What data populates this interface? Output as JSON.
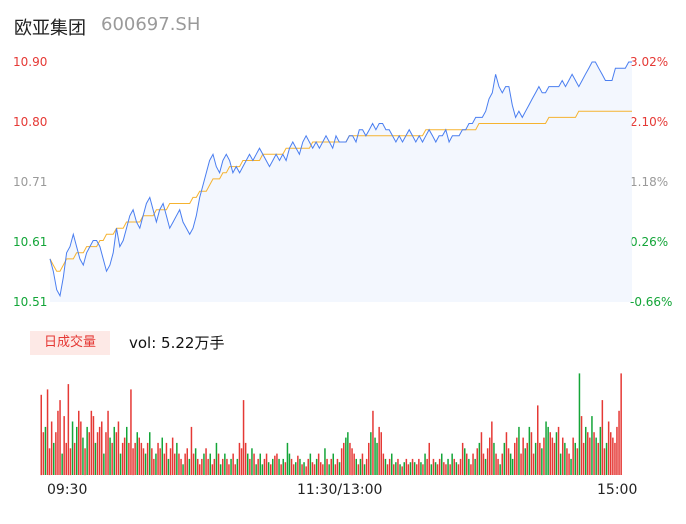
{
  "header": {
    "name": "欧亚集团",
    "code": "600697.SH"
  },
  "price_axis": {
    "left_labels": [
      "10.90",
      "10.80",
      "10.71",
      "10.61",
      "10.51"
    ],
    "right_labels": [
      "3.02%",
      "2.10%",
      "1.18%",
      "0.26%",
      "-0.66%"
    ]
  },
  "volume": {
    "tab_label": "日成交量",
    "summary": "vol: 5.22万手"
  },
  "time_axis": {
    "labels": [
      "09:30",
      "11:30/13:00",
      "15:00"
    ]
  },
  "colors": {
    "up": "#e53935",
    "down": "#13a538",
    "neutral": "#9a9a9a",
    "price_line": "#4a7ef0",
    "avg_line": "#f5b330"
  },
  "chart_data": {
    "type": "line",
    "ylim": [
      10.51,
      10.9
    ],
    "price_series": [
      10.58,
      10.56,
      10.53,
      10.52,
      10.55,
      10.59,
      10.6,
      10.62,
      10.6,
      10.58,
      10.57,
      10.59,
      10.6,
      10.61,
      10.61,
      10.6,
      10.58,
      10.56,
      10.57,
      10.59,
      10.63,
      10.6,
      10.61,
      10.63,
      10.65,
      10.66,
      10.64,
      10.63,
      10.65,
      10.67,
      10.68,
      10.66,
      10.64,
      10.66,
      10.67,
      10.65,
      10.63,
      10.64,
      10.65,
      10.66,
      10.64,
      10.63,
      10.62,
      10.63,
      10.65,
      10.68,
      10.7,
      10.72,
      10.74,
      10.75,
      10.73,
      10.72,
      10.74,
      10.75,
      10.74,
      10.72,
      10.73,
      10.72,
      10.73,
      10.74,
      10.75,
      10.74,
      10.75,
      10.76,
      10.75,
      10.74,
      10.73,
      10.74,
      10.75,
      10.74,
      10.75,
      10.74,
      10.76,
      10.77,
      10.76,
      10.75,
      10.77,
      10.78,
      10.77,
      10.76,
      10.77,
      10.76,
      10.77,
      10.78,
      10.77,
      10.76,
      10.78,
      10.77,
      10.77,
      10.77,
      10.78,
      10.78,
      10.77,
      10.79,
      10.79,
      10.78,
      10.79,
      10.8,
      10.79,
      10.8,
      10.8,
      10.79,
      10.79,
      10.78,
      10.77,
      10.78,
      10.77,
      10.78,
      10.79,
      10.78,
      10.77,
      10.78,
      10.77,
      10.78,
      10.79,
      10.78,
      10.77,
      10.78,
      10.78,
      10.79,
      10.77,
      10.78,
      10.78,
      10.78,
      10.79,
      10.79,
      10.8,
      10.8,
      10.81,
      10.81,
      10.81,
      10.82,
      10.84,
      10.85,
      10.88,
      10.86,
      10.85,
      10.86,
      10.86,
      10.83,
      10.81,
      10.82,
      10.81,
      10.82,
      10.83,
      10.84,
      10.85,
      10.86,
      10.85,
      10.85,
      10.86,
      10.86,
      10.86,
      10.86,
      10.87,
      10.86,
      10.87,
      10.88,
      10.87,
      10.86,
      10.87,
      10.88,
      10.89,
      10.9,
      10.9,
      10.89,
      10.88,
      10.87,
      10.87,
      10.87,
      10.89,
      10.89,
      10.89,
      10.89,
      10.9,
      10.9
    ],
    "avg_series": [
      10.58,
      10.57,
      10.56,
      10.56,
      10.57,
      10.58,
      10.58,
      10.58,
      10.59,
      10.59,
      10.59,
      10.6,
      10.6,
      10.6,
      10.6,
      10.61,
      10.61,
      10.62,
      10.62,
      10.62,
      10.63,
      10.63,
      10.63,
      10.64,
      10.64,
      10.64,
      10.64,
      10.64,
      10.65,
      10.65,
      10.65,
      10.65,
      10.66,
      10.66,
      10.66,
      10.66,
      10.67,
      10.67,
      10.67,
      10.67,
      10.67,
      10.67,
      10.67,
      10.68,
      10.68,
      10.69,
      10.69,
      10.69,
      10.7,
      10.71,
      10.71,
      10.71,
      10.72,
      10.72,
      10.73,
      10.73,
      10.73,
      10.73,
      10.74,
      10.74,
      10.74,
      10.74,
      10.74,
      10.74,
      10.75,
      10.75,
      10.75,
      10.75,
      10.75,
      10.75,
      10.75,
      10.76,
      10.76,
      10.76,
      10.76,
      10.76,
      10.76,
      10.76,
      10.76,
      10.77,
      10.77,
      10.77,
      10.77,
      10.77,
      10.77,
      10.77,
      10.77,
      10.77,
      10.77,
      10.77,
      10.78,
      10.78,
      10.78,
      10.78,
      10.78,
      10.78,
      10.78,
      10.78,
      10.78,
      10.78,
      10.78,
      10.78,
      10.78,
      10.78,
      10.78,
      10.78,
      10.78,
      10.78,
      10.78,
      10.78,
      10.78,
      10.78,
      10.78,
      10.79,
      10.79,
      10.79,
      10.79,
      10.79,
      10.79,
      10.79,
      10.79,
      10.79,
      10.79,
      10.79,
      10.79,
      10.79,
      10.79,
      10.79,
      10.79,
      10.8,
      10.8,
      10.8,
      10.8,
      10.8,
      10.8,
      10.8,
      10.8,
      10.8,
      10.8,
      10.8,
      10.8,
      10.8,
      10.8,
      10.8,
      10.8,
      10.8,
      10.8,
      10.8,
      10.8,
      10.8,
      10.81,
      10.81,
      10.81,
      10.81,
      10.81,
      10.81,
      10.81,
      10.81,
      10.81,
      10.82,
      10.82,
      10.82,
      10.82,
      10.82,
      10.82,
      10.82,
      10.82,
      10.82,
      10.82,
      10.82,
      10.82,
      10.82,
      10.82,
      10.82,
      10.82,
      10.82
    ],
    "volume_series": [
      0.75,
      0.4,
      0.45,
      0.8,
      0.25,
      0.5,
      0.3,
      0.4,
      0.6,
      0.7,
      0.2,
      0.55,
      0.3,
      0.85,
      0.25,
      0.5,
      0.3,
      0.45,
      0.6,
      0.5,
      0.35,
      0.25,
      0.45,
      0.4,
      0.6,
      0.55,
      0.3,
      0.4,
      0.45,
      0.5,
      0.2,
      0.4,
      0.6,
      0.35,
      0.3,
      0.45,
      0.4,
      0.5,
      0.2,
      0.3,
      0.35,
      0.45,
      0.3,
      0.8,
      0.25,
      0.3,
      0.4,
      0.35,
      0.3,
      0.25,
      0.2,
      0.3,
      0.4,
      0.25,
      0.15,
      0.2,
      0.3,
      0.25,
      0.35,
      0.2,
      0.3,
      0.15,
      0.25,
      0.35,
      0.2,
      0.3,
      0.2,
      0.15,
      0.1,
      0.2,
      0.25,
      0.15,
      0.45,
      0.2,
      0.25,
      0.15,
      0.1,
      0.15,
      0.2,
      0.25,
      0.15,
      0.2,
      0.1,
      0.15,
      0.3,
      0.2,
      0.1,
      0.15,
      0.2,
      0.15,
      0.1,
      0.15,
      0.2,
      0.1,
      0.15,
      0.3,
      0.25,
      0.7,
      0.3,
      0.2,
      0.15,
      0.25,
      0.2,
      0.1,
      0.15,
      0.2,
      0.1,
      0.15,
      0.2,
      0.12,
      0.1,
      0.15,
      0.18,
      0.2,
      0.15,
      0.1,
      0.15,
      0.12,
      0.3,
      0.2,
      0.15,
      0.1,
      0.12,
      0.18,
      0.15,
      0.1,
      0.12,
      0.08,
      0.15,
      0.2,
      0.12,
      0.1,
      0.15,
      0.2,
      0.12,
      0.1,
      0.25,
      0.15,
      0.1,
      0.15,
      0.2,
      0.1,
      0.15,
      0.12,
      0.25,
      0.3,
      0.35,
      0.4,
      0.3,
      0.25,
      0.2,
      0.15,
      0.1,
      0.15,
      0.2,
      0.1,
      0.15,
      0.3,
      0.4,
      0.6,
      0.35,
      0.3,
      0.45,
      0.4,
      0.2,
      0.15,
      0.1,
      0.15,
      0.2,
      0.1,
      0.12,
      0.15,
      0.1,
      0.08,
      0.12,
      0.15,
      0.1,
      0.12,
      0.15,
      0.12,
      0.1,
      0.15,
      0.12,
      0.1,
      0.2,
      0.15,
      0.3,
      0.1,
      0.15,
      0.12,
      0.1,
      0.15,
      0.2,
      0.12,
      0.1,
      0.15,
      0.1,
      0.2,
      0.15,
      0.12,
      0.1,
      0.15,
      0.3,
      0.25,
      0.2,
      0.15,
      0.1,
      0.2,
      0.15,
      0.25,
      0.3,
      0.4,
      0.2,
      0.15,
      0.25,
      0.35,
      0.5,
      0.3,
      0.2,
      0.15,
      0.1,
      0.2,
      0.3,
      0.4,
      0.25,
      0.2,
      0.15,
      0.3,
      0.35,
      0.45,
      0.2,
      0.35,
      0.25,
      0.3,
      0.45,
      0.4,
      0.2,
      0.3,
      0.65,
      0.3,
      0.25,
      0.35,
      0.5,
      0.45,
      0.4,
      0.35,
      0.3,
      0.4,
      0.45,
      0.2,
      0.35,
      0.3,
      0.25,
      0.2,
      0.15,
      0.35,
      0.3,
      0.25,
      0.95,
      0.55,
      0.3,
      0.45,
      0.4,
      0.35,
      0.55,
      0.4,
      0.35,
      0.3,
      0.45,
      0.7,
      0.25,
      0.3,
      0.5,
      0.4,
      0.35,
      0.3,
      0.45,
      0.6,
      0.95
    ],
    "volume_colors": [
      "up",
      "up",
      "down",
      "up",
      "up",
      "up",
      "down",
      "up",
      "up",
      "up",
      "down",
      "up",
      "up",
      "up",
      "up",
      "down",
      "up",
      "down",
      "up",
      "up",
      "down",
      "up",
      "down",
      "up",
      "up",
      "up",
      "down",
      "up",
      "up",
      "up",
      "down",
      "up",
      "up",
      "down",
      "up",
      "down",
      "up",
      "up",
      "down",
      "up",
      "up",
      "down",
      "up",
      "up",
      "up",
      "up",
      "down",
      "up",
      "up",
      "up",
      "down",
      "up",
      "down",
      "up",
      "up",
      "down",
      "up",
      "up",
      "down",
      "up",
      "up",
      "down",
      "up",
      "up",
      "up",
      "down",
      "up",
      "up",
      "down",
      "up",
      "up",
      "down",
      "up",
      "up",
      "down",
      "up",
      "up",
      "up",
      "down",
      "up",
      "up",
      "down",
      "up",
      "up",
      "down",
      "up",
      "down",
      "up",
      "down",
      "up",
      "up",
      "down",
      "up",
      "up",
      "down",
      "up",
      "up",
      "up",
      "up",
      "down",
      "up",
      "down",
      "up",
      "down",
      "up",
      "down",
      "down",
      "up",
      "up",
      "down",
      "up",
      "down",
      "up",
      "up",
      "down",
      "up",
      "down",
      "up",
      "down",
      "down",
      "up",
      "up",
      "down",
      "up",
      "down",
      "up",
      "down",
      "up",
      "up",
      "down",
      "up",
      "up",
      "down",
      "up",
      "up",
      "up",
      "down",
      "up",
      "down",
      "up",
      "down",
      "up",
      "up",
      "down",
      "up",
      "up",
      "down",
      "down",
      "up",
      "up",
      "up",
      "down",
      "up",
      "down",
      "up",
      "down",
      "up",
      "up",
      "down",
      "up",
      "down",
      "down",
      "up",
      "up",
      "up",
      "down",
      "up",
      "up",
      "down",
      "up",
      "down",
      "up",
      "down",
      "up",
      "down",
      "up",
      "up",
      "down",
      "up",
      "down",
      "up",
      "up",
      "down",
      "up",
      "down",
      "up",
      "up",
      "down",
      "up",
      "down",
      "up",
      "up",
      "down",
      "up",
      "up",
      "down",
      "up",
      "down",
      "up",
      "down",
      "up",
      "up",
      "up",
      "down",
      "up",
      "down",
      "up",
      "up",
      "down",
      "up",
      "down",
      "up",
      "up",
      "down",
      "up",
      "up",
      "up",
      "down",
      "up",
      "up",
      "down",
      "up",
      "down",
      "up",
      "up",
      "down",
      "down",
      "up",
      "up",
      "down",
      "up",
      "up",
      "down",
      "up",
      "down",
      "up",
      "up",
      "down",
      "up",
      "up",
      "down",
      "up",
      "down",
      "down",
      "up",
      "up",
      "up",
      "down",
      "up",
      "down",
      "up",
      "down",
      "up",
      "up",
      "down",
      "up",
      "down",
      "up",
      "down",
      "up",
      "up",
      "down",
      "up",
      "up",
      "down",
      "up",
      "down",
      "up",
      "down",
      "up",
      "up",
      "down",
      "up",
      "up",
      "up"
    ]
  }
}
